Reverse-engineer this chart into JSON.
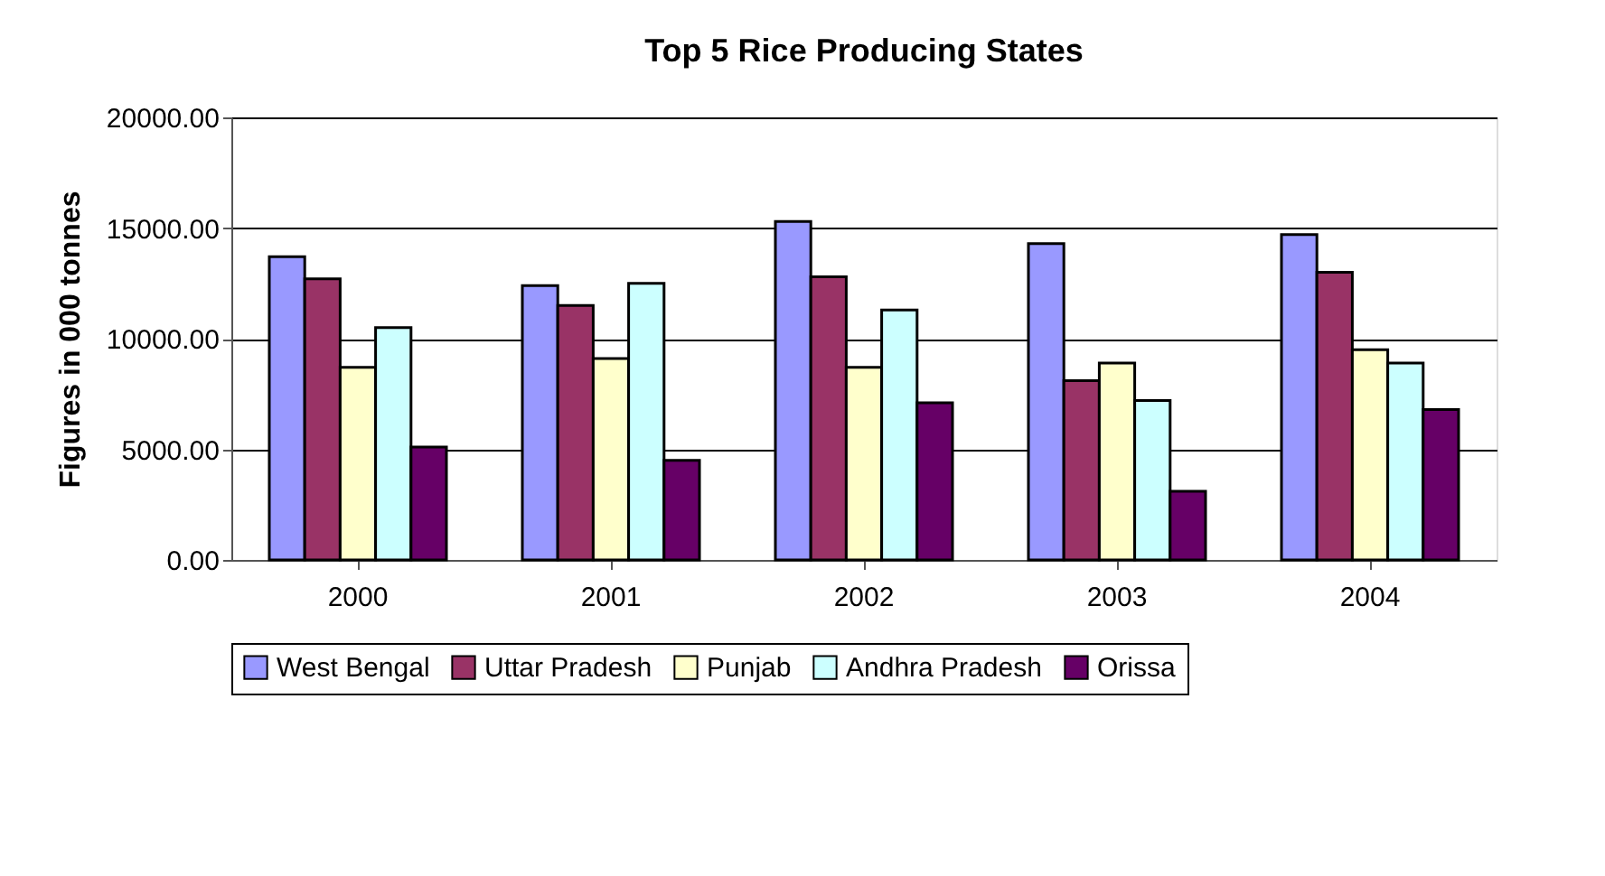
{
  "chart_data": {
    "type": "bar",
    "title": "Top 5 Rice Producing States",
    "ylabel": "Figures in 000 tonnes",
    "categories": [
      "2000",
      "2001",
      "2002",
      "2003",
      "2004"
    ],
    "series": [
      {
        "name": "West Bengal",
        "color": "#9999ff",
        "values": [
          13700,
          12400,
          15300,
          14300,
          14700
        ]
      },
      {
        "name": "Uttar Pradesh",
        "color": "#993366",
        "values": [
          12700,
          11500,
          12800,
          8100,
          13000
        ]
      },
      {
        "name": "Punjab",
        "color": "#ffffcc",
        "values": [
          8700,
          9100,
          8700,
          8900,
          9500
        ]
      },
      {
        "name": "Andhra Pradesh",
        "color": "#ccffff",
        "values": [
          10500,
          12500,
          11300,
          7200,
          8900
        ]
      },
      {
        "name": "Orissa",
        "color": "#660066",
        "values": [
          5100,
          4500,
          7100,
          3100,
          6800
        ]
      }
    ],
    "ylim": [
      0,
      20000
    ],
    "yticks": [
      {
        "value": 0,
        "label": "0.00"
      },
      {
        "value": 5000,
        "label": "5000.00"
      },
      {
        "value": 10000,
        "label": "10000.00"
      },
      {
        "value": 15000,
        "label": "15000.00"
      },
      {
        "value": 20000,
        "label": "20000.00"
      }
    ],
    "grid": "y",
    "legend": "bottom"
  }
}
